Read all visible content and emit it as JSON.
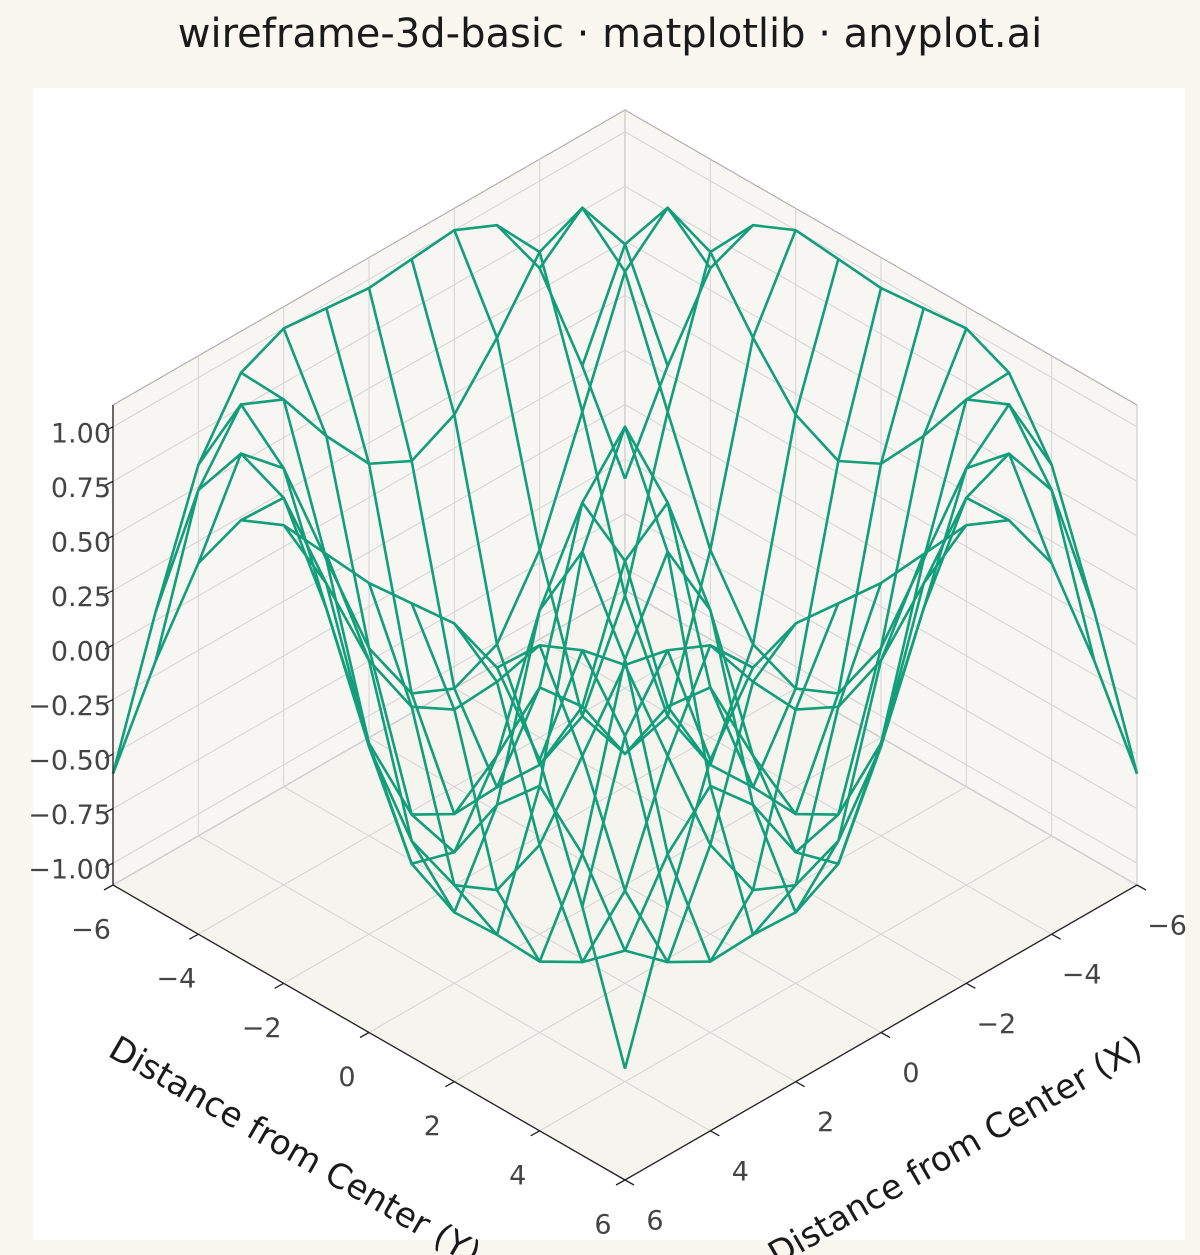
{
  "chart_data": {
    "type": "wireframe",
    "title": "wireframe-3d-basic · matplotlib · anyplot.ai",
    "xlabel": "Distance from Center (X)",
    "ylabel": "Distance from Center (Y)",
    "color": "#119e78",
    "grid": true,
    "x": [
      -6,
      -5,
      -4,
      -3,
      -2,
      -1,
      0,
      1,
      2,
      3,
      4,
      5,
      6
    ],
    "y": [
      -6,
      -5,
      -4,
      -3,
      -2,
      -1,
      0,
      1,
      2,
      3,
      4,
      5,
      6
    ],
    "z": [
      [
        -0.59,
        0.04,
        0.6,
        0.91,
        1.0,
        0.98,
        0.96,
        0.98,
        1.0,
        0.91,
        0.6,
        0.04,
        -0.59
      ],
      [
        0.04,
        0.71,
        0.99,
        0.9,
        0.62,
        0.38,
        0.28,
        0.38,
        0.62,
        0.9,
        0.99,
        0.71,
        0.04
      ],
      [
        0.6,
        0.99,
        0.81,
        0.28,
        -0.24,
        -0.56,
        -0.65,
        -0.56,
        -0.24,
        0.28,
        0.81,
        0.99,
        0.6
      ],
      [
        0.91,
        0.9,
        0.28,
        -0.45,
        -0.89,
        -1.0,
        -0.99,
        -1.0,
        -0.89,
        -0.45,
        0.28,
        0.9,
        0.91
      ],
      [
        1.0,
        0.62,
        -0.24,
        -0.89,
        -0.95,
        -0.62,
        -0.42,
        -0.62,
        -0.95,
        -0.89,
        -0.24,
        0.62,
        1.0
      ],
      [
        0.98,
        0.38,
        -0.56,
        -1.0,
        -0.62,
        0.16,
        0.54,
        0.16,
        -0.62,
        -1.0,
        -0.56,
        0.38,
        0.98
      ],
      [
        0.96,
        0.28,
        -0.65,
        -0.99,
        -0.42,
        0.54,
        1.0,
        0.54,
        -0.42,
        -0.99,
        -0.65,
        0.28,
        0.96
      ],
      [
        0.98,
        0.38,
        -0.56,
        -1.0,
        -0.62,
        0.16,
        0.54,
        0.16,
        -0.62,
        -1.0,
        -0.56,
        0.38,
        0.98
      ],
      [
        1.0,
        0.62,
        -0.24,
        -0.89,
        -0.95,
        -0.62,
        -0.42,
        -0.62,
        -0.95,
        -0.89,
        -0.24,
        0.62,
        1.0
      ],
      [
        0.91,
        0.9,
        0.28,
        -0.45,
        -0.89,
        -1.0,
        -0.99,
        -1.0,
        -0.89,
        -0.45,
        0.28,
        0.9,
        0.91
      ],
      [
        0.6,
        0.99,
        0.81,
        0.28,
        -0.24,
        -0.56,
        -0.65,
        -0.56,
        -0.24,
        0.28,
        0.81,
        0.99,
        0.6
      ],
      [
        0.04,
        0.71,
        0.99,
        0.9,
        0.62,
        0.38,
        0.28,
        0.38,
        0.62,
        0.9,
        0.99,
        0.71,
        0.04
      ],
      [
        -0.59,
        0.04,
        0.6,
        0.91,
        1.0,
        0.98,
        0.96,
        0.98,
        1.0,
        0.91,
        0.6,
        0.04,
        -0.59
      ]
    ],
    "xlim": [
      -6,
      6
    ],
    "ylim": [
      -6,
      6
    ],
    "zlim": [
      -1.1,
      1.1
    ],
    "xticks": [
      {
        "value": -6,
        "label": "−6"
      },
      {
        "value": -4,
        "label": "−4"
      },
      {
        "value": -2,
        "label": "−2"
      },
      0,
      2,
      4,
      6
    ],
    "yticks": [
      {
        "value": -6,
        "label": "−6"
      },
      {
        "value": -4,
        "label": "−4"
      },
      {
        "value": -2,
        "label": "−2"
      },
      0,
      2,
      4,
      6
    ],
    "zticks": [
      {
        "value": -1,
        "label": "−1.00"
      },
      {
        "value": -0.75,
        "label": "−0.75"
      },
      {
        "value": -0.5,
        "label": "−0.50"
      },
      {
        "value": -0.25,
        "label": "−0.25"
      },
      {
        "value": 0,
        "label": "0.00"
      },
      {
        "value": 0.25,
        "label": "0.25"
      },
      {
        "value": 0.5,
        "label": "0.50"
      },
      {
        "value": 0.75,
        "label": "0.75"
      },
      {
        "value": 1,
        "label": "1.00"
      }
    ]
  }
}
